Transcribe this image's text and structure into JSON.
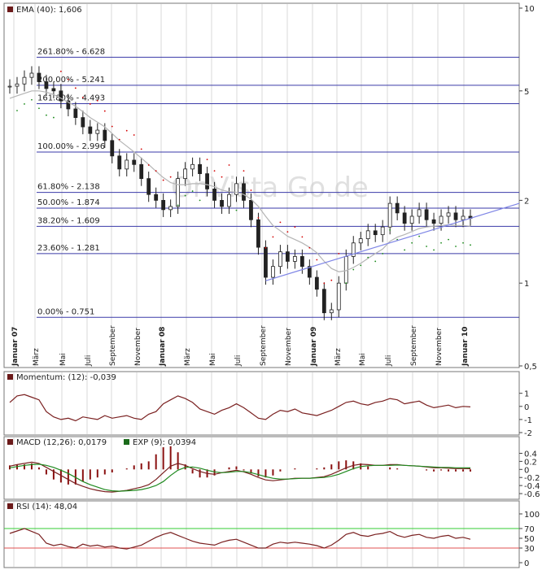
{
  "colors": {
    "fib_line": "#3a3aa8",
    "grid": "#d9d9d9",
    "candle": "#222222",
    "ema": "#b5b5b5",
    "stop_red": "#d40000",
    "stop_green": "#1a8a1a",
    "trend": "#7f86e6",
    "indicator": "#7a2020",
    "macd_signal": "#1f8a1f",
    "rsi_70": "#33cc33",
    "rsi_30": "#e05050",
    "legend_box_ema": "#6b1a1a",
    "legend_box_exp": "#1a6b1a",
    "panel_border": "#777777"
  },
  "watermark": "OnVista Go.de",
  "main_panel": {
    "legend": "EMA (40): 1,606",
    "yticks": [
      "10",
      "5",
      "2",
      "1",
      "0,5"
    ],
    "fib_levels": [
      {
        "label": "261.80% - 6.628",
        "value": 6.628
      },
      {
        "label": "200.00% - 5.241",
        "value": 5.241
      },
      {
        "label": "161.80% - 4.493",
        "value": 4.493
      },
      {
        "label": "100.00% - 2.996",
        "value": 2.996
      },
      {
        "label": "61.80% - 2.138",
        "value": 2.138
      },
      {
        "label": "50.00% - 1.874",
        "value": 1.874
      },
      {
        "label": "38.20% - 1.609",
        "value": 1.609
      },
      {
        "label": "23.60% - 1.281",
        "value": 1.281
      },
      {
        "label": "0.00% - 0.751",
        "value": 0.751
      }
    ],
    "xaxis_labels": [
      {
        "text": "Januar 07",
        "year": true
      },
      {
        "text": "März",
        "year": false
      },
      {
        "text": "Mai",
        "year": false
      },
      {
        "text": "Juli",
        "year": false
      },
      {
        "text": "September",
        "year": false
      },
      {
        "text": "November",
        "year": false
      },
      {
        "text": "Januar 08",
        "year": true
      },
      {
        "text": "März",
        "year": false
      },
      {
        "text": "Mai",
        "year": false
      },
      {
        "text": "Juli",
        "year": false
      },
      {
        "text": "September",
        "year": false
      },
      {
        "text": "November",
        "year": false
      },
      {
        "text": "Januar 09",
        "year": true
      },
      {
        "text": "März",
        "year": false
      },
      {
        "text": "Mai",
        "year": false
      },
      {
        "text": "Juli",
        "year": false
      },
      {
        "text": "September",
        "year": false
      },
      {
        "text": "November",
        "year": false
      },
      {
        "text": "Januar 10",
        "year": true
      }
    ]
  },
  "momentum_panel": {
    "legend": "Momentum: (12): -0,039",
    "yticks": [
      "1",
      "0",
      "-1",
      "-2"
    ]
  },
  "macd_panel": {
    "legend_macd": "MACD (12,26): 0,0179",
    "legend_exp": "EXP (9): 0,0394",
    "yticks": [
      "0.4",
      "0.2",
      "0",
      "-0.2",
      "-0.4",
      "-0.6"
    ]
  },
  "rsi_panel": {
    "legend": "RSI (14): 48,04",
    "yticks": [
      "100",
      "70",
      "50",
      "30",
      "0"
    ]
  },
  "chart_data": [
    {
      "type": "candlestick",
      "title": "EMA (40): 1,606",
      "scale": "log",
      "ylim": [
        0.5,
        10
      ],
      "x_range": [
        "Januar 07",
        "Januar 10"
      ],
      "close": [
        5.2,
        5.3,
        5.6,
        5.8,
        5.4,
        5.1,
        5.0,
        4.6,
        4.3,
        4.0,
        3.7,
        3.5,
        3.6,
        3.3,
        2.9,
        2.6,
        2.8,
        2.7,
        2.4,
        2.1,
        2.0,
        1.85,
        1.9,
        2.4,
        2.6,
        2.7,
        2.5,
        2.2,
        2.0,
        1.9,
        2.1,
        2.3,
        2.0,
        1.7,
        1.35,
        1.05,
        1.15,
        1.3,
        1.2,
        1.25,
        1.15,
        1.05,
        0.95,
        0.78,
        0.8,
        1.0,
        1.25,
        1.4,
        1.45,
        1.55,
        1.5,
        1.6,
        1.95,
        1.8,
        1.65,
        1.75,
        1.85,
        1.7,
        1.65,
        1.75,
        1.8,
        1.7,
        1.75,
        1.72
      ],
      "ema": [
        4.7,
        4.8,
        4.9,
        5.0,
        5.0,
        4.95,
        4.85,
        4.7,
        4.55,
        4.4,
        4.2,
        4.0,
        3.85,
        3.7,
        3.5,
        3.3,
        3.15,
        3.0,
        2.85,
        2.7,
        2.55,
        2.42,
        2.32,
        2.28,
        2.28,
        2.3,
        2.3,
        2.28,
        2.24,
        2.18,
        2.15,
        2.14,
        2.1,
        2.02,
        1.9,
        1.75,
        1.62,
        1.55,
        1.48,
        1.44,
        1.4,
        1.35,
        1.29,
        1.2,
        1.13,
        1.1,
        1.11,
        1.14,
        1.18,
        1.23,
        1.28,
        1.33,
        1.42,
        1.47,
        1.5,
        1.54,
        1.58,
        1.6,
        1.61,
        1.62,
        1.63,
        1.62,
        1.62,
        1.61
      ]
    },
    {
      "type": "line",
      "title": "Momentum: (12): -0,039",
      "ylim": [
        -2,
        1.6
      ],
      "values": [
        0.3,
        0.8,
        0.9,
        0.7,
        0.5,
        -0.4,
        -0.8,
        -1.0,
        -0.9,
        -1.1,
        -0.8,
        -0.9,
        -1.0,
        -0.7,
        -0.9,
        -0.8,
        -0.7,
        -0.9,
        -1.0,
        -0.6,
        -0.4,
        0.2,
        0.5,
        0.8,
        0.6,
        0.3,
        -0.2,
        -0.4,
        -0.6,
        -0.3,
        -0.1,
        0.2,
        -0.1,
        -0.5,
        -0.9,
        -1.0,
        -0.6,
        -0.3,
        -0.4,
        -0.2,
        -0.5,
        -0.6,
        -0.7,
        -0.5,
        -0.3,
        0.0,
        0.3,
        0.4,
        0.2,
        0.1,
        0.3,
        0.4,
        0.6,
        0.5,
        0.2,
        0.3,
        0.4,
        0.1,
        -0.1,
        0.0,
        0.1,
        -0.1,
        0.0,
        -0.04
      ]
    },
    {
      "type": "line",
      "title": "MACD (12,26): 0,0179",
      "ylim": [
        -0.7,
        0.45
      ],
      "series": [
        {
          "name": "MACD (12,26)",
          "values": [
            0.08,
            0.12,
            0.15,
            0.18,
            0.15,
            0.05,
            -0.05,
            -0.15,
            -0.25,
            -0.35,
            -0.42,
            -0.48,
            -0.52,
            -0.55,
            -0.56,
            -0.54,
            -0.52,
            -0.48,
            -0.44,
            -0.38,
            -0.25,
            -0.08,
            0.08,
            0.15,
            0.1,
            0.02,
            -0.05,
            -0.1,
            -0.12,
            -0.08,
            -0.05,
            -0.02,
            -0.06,
            -0.12,
            -0.2,
            -0.26,
            -0.28,
            -0.26,
            -0.24,
            -0.22,
            -0.22,
            -0.22,
            -0.2,
            -0.18,
            -0.12,
            -0.04,
            0.04,
            0.1,
            0.13,
            0.12,
            0.1,
            0.1,
            0.12,
            0.12,
            0.1,
            0.09,
            0.08,
            0.06,
            0.04,
            0.04,
            0.03,
            0.02,
            0.02,
            0.018
          ]
        },
        {
          "name": "EXP (9)",
          "values": [
            0.04,
            0.07,
            0.1,
            0.12,
            0.13,
            0.1,
            0.05,
            -0.02,
            -0.1,
            -0.2,
            -0.3,
            -0.38,
            -0.44,
            -0.5,
            -0.53,
            -0.54,
            -0.53,
            -0.52,
            -0.5,
            -0.46,
            -0.4,
            -0.3,
            -0.15,
            -0.02,
            0.05,
            0.06,
            0.03,
            -0.02,
            -0.06,
            -0.08,
            -0.07,
            -0.05,
            -0.05,
            -0.08,
            -0.13,
            -0.18,
            -0.22,
            -0.24,
            -0.24,
            -0.23,
            -0.22,
            -0.22,
            -0.21,
            -0.2,
            -0.17,
            -0.12,
            -0.05,
            0.02,
            0.07,
            0.09,
            0.1,
            0.1,
            0.1,
            0.11,
            0.1,
            0.09,
            0.08,
            0.07,
            0.06,
            0.05,
            0.05,
            0.04,
            0.04,
            0.039
          ]
        }
      ]
    },
    {
      "type": "line",
      "title": "RSI (14): 48,04",
      "ylim": [
        0,
        100
      ],
      "levels": [
        70,
        30
      ],
      "values": [
        60,
        65,
        70,
        64,
        58,
        40,
        35,
        38,
        33,
        30,
        38,
        34,
        36,
        32,
        34,
        30,
        28,
        32,
        36,
        44,
        52,
        58,
        62,
        56,
        50,
        44,
        40,
        38,
        36,
        42,
        46,
        48,
        42,
        36,
        30,
        30,
        38,
        42,
        40,
        42,
        40,
        38,
        35,
        30,
        36,
        46,
        58,
        62,
        56,
        54,
        58,
        60,
        64,
        56,
        52,
        56,
        58,
        52,
        50,
        54,
        56,
        50,
        52,
        48
      ]
    }
  ]
}
